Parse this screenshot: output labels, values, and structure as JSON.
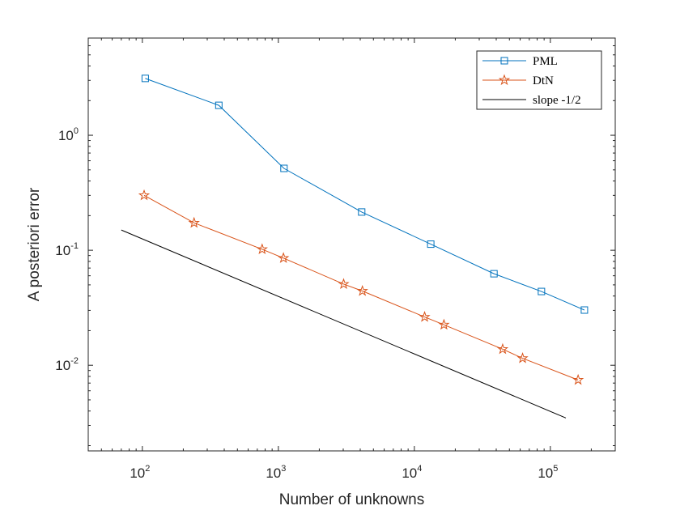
{
  "chart_data": {
    "type": "line",
    "title": "",
    "xlabel": "Number of unknowns",
    "ylabel": "A posteriori error",
    "xscale": "log",
    "yscale": "log",
    "xlim": [
      40,
      300000
    ],
    "ylim": [
      0.0018,
      7
    ],
    "grid": false,
    "legend_position": "top-right",
    "x_ticks": [
      {
        "value": 100,
        "base": "10",
        "exp": "2"
      },
      {
        "value": 1000,
        "base": "10",
        "exp": "3"
      },
      {
        "value": 10000,
        "base": "10",
        "exp": "4"
      },
      {
        "value": 100000,
        "base": "10",
        "exp": "5"
      }
    ],
    "y_ticks": [
      {
        "value": 0.01,
        "base": "10",
        "exp": "-2"
      },
      {
        "value": 0.1,
        "base": "10",
        "exp": "-1"
      },
      {
        "value": 1,
        "base": "10",
        "exp": "0"
      }
    ],
    "series": [
      {
        "name": "PML",
        "color": "#0072BD",
        "marker": "square",
        "x": [
          105,
          365,
          1100,
          4100,
          13200,
          38500,
          86000,
          178000
        ],
        "y": [
          3.12,
          1.82,
          0.515,
          0.215,
          0.113,
          0.0625,
          0.0438,
          0.0302
        ]
      },
      {
        "name": "DtN",
        "color": "#D95319",
        "marker": "star",
        "x": [
          103,
          240,
          760,
          1090,
          3020,
          4150,
          11900,
          16500,
          44600,
          62500,
          160000
        ],
        "y": [
          0.3,
          0.173,
          0.102,
          0.0855,
          0.0508,
          0.0442,
          0.0263,
          0.0225,
          0.0138,
          0.0115,
          0.00745
        ]
      },
      {
        "name": "slope -1/2",
        "color": "#000000",
        "marker": "none",
        "x": [
          70,
          130000
        ],
        "y": [
          0.15,
          0.00348
        ]
      }
    ]
  }
}
